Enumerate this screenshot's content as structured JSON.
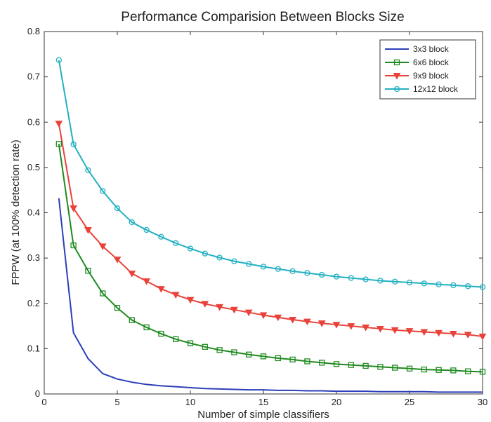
{
  "chart_data": {
    "type": "line",
    "title": "Performance Comparision Between Blocks Size",
    "xlabel": "Number of simple classifiers",
    "ylabel": "FPPW (at 100% detection rate)",
    "xlim": [
      0,
      30
    ],
    "ylim": [
      0,
      0.8
    ],
    "xticks": [
      0,
      5,
      10,
      15,
      20,
      25,
      30
    ],
    "yticks": [
      0,
      0.1,
      0.2,
      0.3,
      0.4,
      0.5,
      0.6,
      0.7,
      0.8
    ],
    "xtick_labels": [
      "0",
      "5",
      "10",
      "15",
      "20",
      "25",
      "30"
    ],
    "ytick_labels": [
      "0",
      "0.1",
      "0.2",
      "0.3",
      "0.4",
      "0.5",
      "0.6",
      "0.7",
      "0.8"
    ],
    "grid": false,
    "legend_position": "top-right",
    "x": [
      1,
      2,
      3,
      4,
      5,
      6,
      7,
      8,
      9,
      10,
      11,
      12,
      13,
      14,
      15,
      16,
      17,
      18,
      19,
      20,
      21,
      22,
      23,
      24,
      25,
      26,
      27,
      28,
      29,
      30
    ],
    "series": [
      {
        "name": "3x3 block",
        "color": "#2b3fb8",
        "marker": "none",
        "values": [
          0.432,
          0.135,
          0.078,
          0.045,
          0.033,
          0.026,
          0.021,
          0.018,
          0.016,
          0.014,
          0.012,
          0.011,
          0.01,
          0.009,
          0.009,
          0.008,
          0.008,
          0.007,
          0.007,
          0.006,
          0.006,
          0.006,
          0.005,
          0.005,
          0.005,
          0.005,
          0.004,
          0.004,
          0.004,
          0.004
        ]
      },
      {
        "name": "6x6 block",
        "color": "#1f8a1f",
        "marker": "square",
        "values": [
          0.552,
          0.328,
          0.272,
          0.222,
          0.19,
          0.163,
          0.147,
          0.133,
          0.121,
          0.112,
          0.104,
          0.097,
          0.092,
          0.087,
          0.083,
          0.079,
          0.076,
          0.072,
          0.069,
          0.066,
          0.064,
          0.062,
          0.06,
          0.058,
          0.056,
          0.054,
          0.053,
          0.052,
          0.05,
          0.049
        ]
      },
      {
        "name": "9x9 block",
        "color": "#e8423a",
        "marker": "triangle-down",
        "values": [
          0.597,
          0.41,
          0.362,
          0.326,
          0.297,
          0.266,
          0.249,
          0.232,
          0.219,
          0.208,
          0.199,
          0.192,
          0.186,
          0.18,
          0.174,
          0.169,
          0.164,
          0.16,
          0.156,
          0.153,
          0.15,
          0.147,
          0.144,
          0.141,
          0.139,
          0.137,
          0.135,
          0.133,
          0.131,
          0.127
        ]
      },
      {
        "name": "12x12 block",
        "color": "#22b0c2",
        "marker": "circle",
        "values": [
          0.737,
          0.551,
          0.494,
          0.448,
          0.41,
          0.379,
          0.362,
          0.347,
          0.333,
          0.321,
          0.31,
          0.301,
          0.293,
          0.287,
          0.281,
          0.276,
          0.271,
          0.267,
          0.263,
          0.259,
          0.256,
          0.253,
          0.25,
          0.248,
          0.246,
          0.244,
          0.242,
          0.24,
          0.238,
          0.236
        ]
      }
    ]
  }
}
